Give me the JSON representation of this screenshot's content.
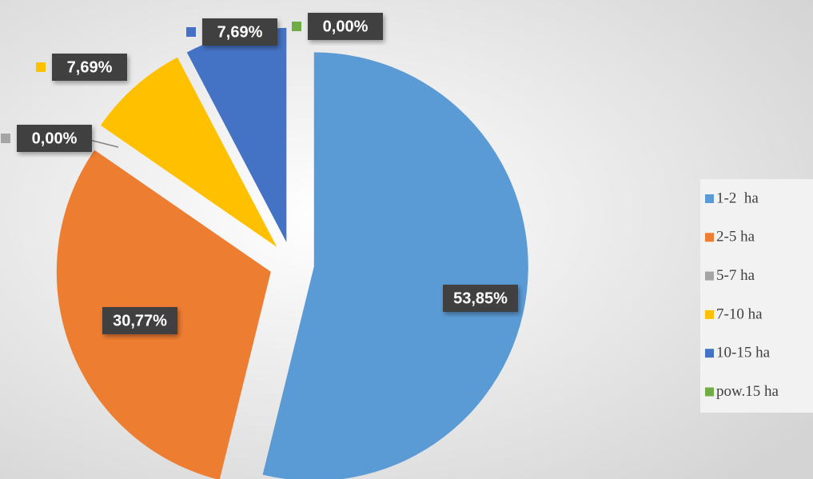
{
  "chart_data": {
    "type": "pie",
    "categories": [
      "1-2  ha",
      "2-5 ha",
      "5-7 ha",
      "7-10 ha",
      "10-15 ha",
      "pow.15 ha"
    ],
    "values": [
      53.85,
      30.77,
      0,
      7.69,
      7.69,
      0
    ],
    "value_labels": [
      "53,85%",
      "30,77%",
      "0,00%",
      "7,69%",
      "7,69%",
      "0,00%"
    ],
    "colors": [
      "#5b9bd5",
      "#ed7d31",
      "#a5a5a5",
      "#ffc000",
      "#4472c4",
      "#70ad47"
    ],
    "legend": "right"
  }
}
